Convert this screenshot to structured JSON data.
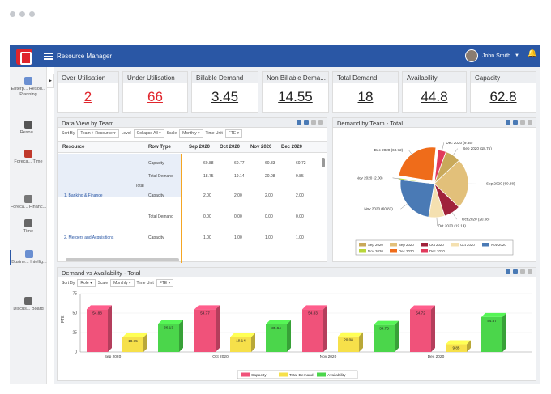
{
  "app": {
    "title": "Resource Manager",
    "user": "John Smith"
  },
  "sidebar": {
    "items": [
      {
        "label": "Enterp... Resou... Planning",
        "color": "#6a8fd1"
      },
      {
        "label": "Resou...",
        "color": "#555555"
      },
      {
        "label": "Foreca... Time",
        "color": "#c0392b"
      },
      {
        "label": "Foreca... Financ...",
        "color": "#777777"
      },
      {
        "label": "Time",
        "color": "#666666"
      },
      {
        "label": "Busine... Intellig...",
        "color": "#6a8fd1"
      },
      {
        "label": "Discus... Board",
        "color": "#666666"
      }
    ]
  },
  "kpis": [
    {
      "label": "Over Utilisation",
      "value": "2",
      "color": "#e0252c"
    },
    {
      "label": "Under Utilisation",
      "value": "66",
      "color": "#e0252c"
    },
    {
      "label": "Billable Demand",
      "value": "3.45",
      "color": "#222222"
    },
    {
      "label": "Non Billable Dema...",
      "value": "14.55",
      "color": "#222222"
    },
    {
      "label": "Total Demand",
      "value": "18",
      "color": "#222222"
    },
    {
      "label": "Availability",
      "value": "44.8",
      "color": "#222222"
    },
    {
      "label": "Capacity",
      "value": "62.8",
      "color": "#222222"
    }
  ],
  "dataview": {
    "title": "Data View by Team",
    "filters": [
      {
        "label": "Sort By",
        "value": "Team + Resource"
      },
      {
        "label": "Level",
        "value": "Collapse All"
      },
      {
        "label": "Scale",
        "value": "Monthly"
      },
      {
        "label": "Time Unit",
        "value": "FTE"
      }
    ],
    "headers": [
      "Resource",
      "Row Type",
      "Sep 2020",
      "Oct 2020",
      "Nov 2020",
      "Dec 2020"
    ],
    "rows": [
      {
        "resource": "",
        "type": "Capacity",
        "vals": [
          "60.88",
          "60.77",
          "60.83",
          "60.72"
        ]
      },
      {
        "resource": "Total",
        "type": "Total Demand",
        "vals": [
          "18.75",
          "19.14",
          "20.08",
          "9.85"
        ]
      },
      {
        "resource": "1. Banking & Finance",
        "type": "Capacity",
        "vals": [
          "2.00",
          "2.00",
          "2.00",
          "2.00"
        ]
      },
      {
        "resource": "",
        "type": "Total Demand",
        "vals": [
          "0.00",
          "0.00",
          "0.00",
          "0.00"
        ]
      },
      {
        "resource": "2. Mergers and Acquisitions",
        "type": "Capacity",
        "vals": [
          "1.00",
          "1.00",
          "1.00",
          "1.00"
        ]
      }
    ]
  },
  "pie_panel": {
    "title": "Demand by Team - Total"
  },
  "bar_panel": {
    "title": "Demand vs Availability - Total",
    "filters": [
      {
        "label": "Sort By",
        "value": "Role"
      },
      {
        "label": "Scale",
        "value": "Monthly"
      },
      {
        "label": "Time Unit",
        "value": "FTE"
      }
    ]
  },
  "chart_data": [
    {
      "type": "pie",
      "title": "Demand by Team - Total",
      "slices": [
        {
          "label": "Sep 2020 (18.75)",
          "value": 18.75,
          "color": "#c9a95a"
        },
        {
          "label": "Sep 2020 (60.88)",
          "value": 60.88,
          "color": "#e2c07a"
        },
        {
          "label": "Oct 2020 (20.08)",
          "value": 20.08,
          "color": "#a0223b"
        },
        {
          "label": "Oct 2020 (19.14)",
          "value": 19.14,
          "color": "#f4e0b0"
        },
        {
          "label": "Nov 2020 (60.83)",
          "value": 60.83,
          "color": "#4a7ab5"
        },
        {
          "label": "Nov 2020 (2.00)",
          "value": 2.0,
          "color": "#b8d63a"
        },
        {
          "label": "Dec 2020 (60.72)",
          "value": 60.72,
          "color": "#ef6c1a"
        },
        {
          "label": "Dec 2020 (9.85)",
          "value": 9.85,
          "color": "#e13a5c"
        }
      ],
      "legend": [
        "Sep 2020",
        "Sep 2020",
        "Oct 2020",
        "Oct 2020",
        "Nov 2020",
        "Nov 2020",
        "Dec 2020",
        "Dec 2020"
      ]
    },
    {
      "type": "bar",
      "categories": [
        "Sep 2020",
        "Oct 2020",
        "Nov 2020",
        "Dec 2020"
      ],
      "series": [
        {
          "name": "Capacity",
          "values": [
            54.88,
            54.77,
            54.83,
            54.72
          ],
          "color": "#f0527a"
        },
        {
          "name": "Total Demand",
          "values": [
            18.75,
            19.14,
            20.08,
            9.85
          ],
          "color": "#f6e04a"
        },
        {
          "name": "Availability",
          "values": [
            36.13,
            35.64,
            34.75,
            44.87
          ],
          "color": "#4bd64b"
        }
      ],
      "data_labels": [
        [
          "54.88",
          "54.77",
          "54.83",
          "54.72"
        ],
        [
          "18.75",
          "19.14",
          "20.08",
          "9.85"
        ],
        [
          "36.13",
          "35.64",
          "34.75",
          "44.87"
        ]
      ],
      "ylabel": "FTE",
      "yticks": [
        "0",
        "25",
        "50",
        "75"
      ],
      "ylim": [
        0,
        75
      ],
      "grid": true,
      "legend_position": "bottom"
    }
  ]
}
